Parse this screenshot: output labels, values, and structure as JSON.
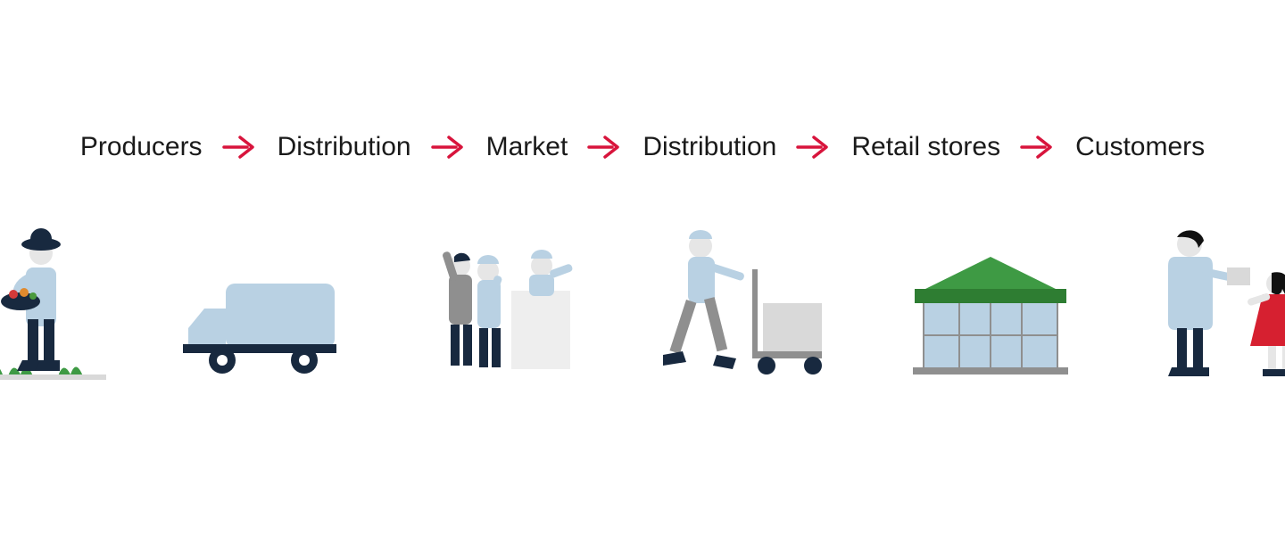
{
  "type": "flowchart",
  "background_color": "#ffffff",
  "label_color": "#1a1a1a",
  "label_fontsize": 30,
  "arrow_color": "#d8143c",
  "arrow_stroke_width": 3.5,
  "palette": {
    "skin": "#e6e6e6",
    "lightblue": "#b9d1e3",
    "navy": "#18293f",
    "grey": "#8f8f8f",
    "lightgrey": "#d9d9d9",
    "softgrey": "#eeeeee",
    "green_dark": "#2e7d32",
    "green_mid": "#3e9a44",
    "red_dress": "#d62030",
    "black": "#111111"
  },
  "steps": [
    {
      "label": "Producers",
      "icon": "farmer"
    },
    {
      "label": "Distribution",
      "icon": "truck"
    },
    {
      "label": "Market",
      "icon": "market"
    },
    {
      "label": "Distribution",
      "icon": "trolley"
    },
    {
      "label": "Retail stores",
      "icon": "store"
    },
    {
      "label": "Customers",
      "icon": "customers"
    }
  ]
}
